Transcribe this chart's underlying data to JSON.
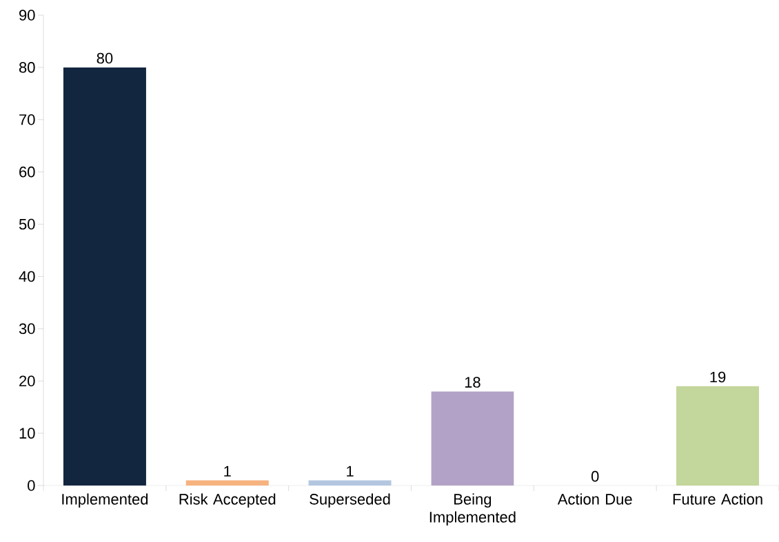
{
  "chart_data": {
    "type": "bar",
    "categories": [
      "Implemented",
      "Risk Accepted",
      "Superseded",
      "Being Implemented",
      "Action Due",
      "Future Action"
    ],
    "values": [
      80,
      1,
      1,
      18,
      0,
      19
    ],
    "colors": [
      "#12263f",
      "#f6b27f",
      "#b3c6e0",
      "#b3a2c7",
      "#f79646",
      "#c3d69b"
    ],
    "ylim": [
      0,
      90
    ],
    "yticks": [
      0,
      10,
      20,
      30,
      40,
      50,
      60,
      70,
      80,
      90
    ],
    "data_labels": true
  }
}
